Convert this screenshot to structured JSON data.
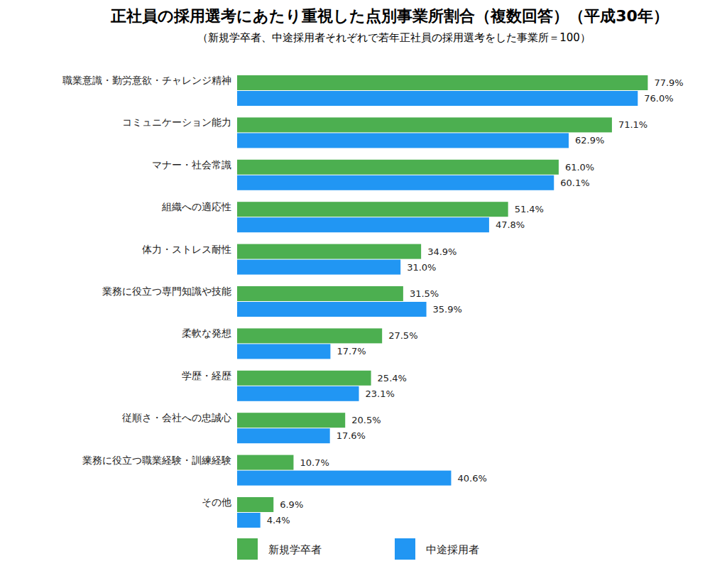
{
  "chart_data": {
    "type": "bar",
    "orientation": "horizontal",
    "title": "正社員の採用選考にあたり重視した点別事業所割合（複数回答）（平成30年）",
    "subtitle": "（新規学卒者、中途採用者それぞれで若年正社員の採用選考をした事業所＝100）",
    "categories": [
      "職業意識・勤労意欲・チャレンジ精神",
      "コミュニケーション能力",
      "マナー・社会常識",
      "組織への適応性",
      "体力・ストレス耐性",
      "業務に役立つ専門知識や技能",
      "柔軟な発想",
      "学歴・経歴",
      "従順さ・会社への忠誠心",
      "業務に役立つ職業経験・訓練経験",
      "その他"
    ],
    "series": [
      {
        "name": "新規学卒者",
        "color": "#4caf50",
        "values": [
          77.9,
          71.1,
          61.0,
          51.4,
          34.9,
          31.5,
          27.5,
          25.4,
          20.5,
          10.7,
          6.9
        ],
        "value_labels": [
          "77.9%",
          "71.1%",
          "61.0%",
          "51.4%",
          "34.9%",
          "31.5%",
          "27.5%",
          "25.4%",
          "20.5%",
          "10.7%",
          "6.9%"
        ]
      },
      {
        "name": "中途採用者",
        "color": "#2196f3",
        "values": [
          76.0,
          62.9,
          60.1,
          47.8,
          31.0,
          35.9,
          17.7,
          23.1,
          17.6,
          40.6,
          4.4
        ],
        "value_labels": [
          "76.0%",
          "62.9%",
          "60.1%",
          "47.8%",
          "31.0%",
          "35.9%",
          "17.7%",
          "23.1%",
          "17.6%",
          "40.6%",
          "4.4%"
        ]
      }
    ],
    "xlim": [
      0,
      80
    ],
    "grid": false,
    "legend": "bottom",
    "data_labels": true,
    "tick_labels": "y"
  }
}
